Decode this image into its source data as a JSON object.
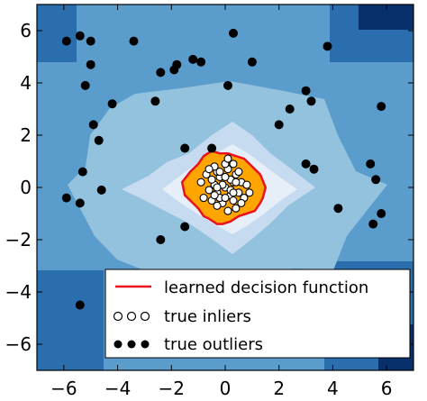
{
  "chart_data": {
    "type": "scatter",
    "xlim": [
      -7,
      7
    ],
    "ylim": [
      -7,
      7
    ],
    "x_ticks": [
      -6,
      -4,
      -2,
      0,
      2,
      4,
      6
    ],
    "y_ticks": [
      -6,
      -4,
      -2,
      0,
      2,
      4,
      6
    ],
    "x_tick_labels": [
      "−6",
      "−4",
      "−2",
      "0",
      "2",
      "4",
      "6"
    ],
    "y_tick_labels": [
      "−6",
      "−4",
      "−2",
      "0",
      "2",
      "4",
      "6"
    ],
    "grid": false,
    "legend": {
      "placement": "lower-right",
      "entries": [
        {
          "label": "learned decision function",
          "marker": "line",
          "color": "#e8131e"
        },
        {
          "label": "true inliers",
          "marker": "open-circle",
          "color": "#ffffff"
        },
        {
          "label": "true outliers",
          "marker": "filled-circle",
          "color": "#000000"
        }
      ]
    },
    "background": {
      "description_levels": [
        "#08306b",
        "#2a6eae",
        "#5a9ccc",
        "#93c2df",
        "#c6dbef",
        "#e6eff8"
      ],
      "inside_region_color": "#ffa500"
    },
    "decision_boundary": {
      "color": "#e8131e",
      "x": [
        -1.6,
        -1.3,
        -1.0,
        -0.8,
        -0.5,
        -0.2,
        0.1,
        0.4,
        0.7,
        0.9,
        1.1,
        1.3,
        1.5,
        1.4,
        1.3,
        1.1,
        0.8,
        0.5,
        0.2,
        -0.1,
        -0.3,
        -0.6,
        -0.8,
        -1.0,
        -1.2,
        -1.5,
        -1.6
      ],
      "y": [
        0.2,
        0.6,
        0.9,
        1.2,
        1.4,
        1.3,
        1.3,
        1.2,
        1.1,
        0.9,
        0.7,
        0.5,
        0.0,
        -0.4,
        -0.6,
        -0.9,
        -1.0,
        -1.1,
        -1.3,
        -1.4,
        -1.4,
        -1.2,
        -1.1,
        -0.8,
        -0.6,
        -0.3,
        0.2
      ]
    },
    "series": [
      {
        "name": "true inliers",
        "color": "#ffffff",
        "x": [
          0.0,
          0.3,
          -0.3,
          0.2,
          -0.2,
          0.4,
          -0.4,
          0.1,
          -0.1,
          0.5,
          -0.5,
          0.3,
          -0.3,
          0.0,
          0.6,
          -0.6,
          0.2,
          -0.2,
          0.4,
          -0.4,
          0.7,
          -0.7,
          0.1,
          -0.1,
          0.3,
          -0.3,
          0.5,
          -0.5,
          0.0,
          0.8,
          -0.8,
          0.2,
          -0.2,
          0.6,
          -0.6,
          0.4,
          -0.4,
          0.0,
          0.3,
          -0.3,
          0.1,
          0.9,
          -0.9
        ],
        "y": [
          0.0,
          0.2,
          -0.2,
          -0.3,
          0.4,
          0.5,
          0.1,
          0.7,
          -0.6,
          -0.2,
          0.3,
          -0.5,
          0.6,
          0.9,
          0.2,
          -0.1,
          0.3,
          -0.4,
          -0.8,
          0.8,
          -0.4,
          0.5,
          -0.9,
          0.1,
          0.9,
          -0.7,
          0.6,
          -0.5,
          -0.4,
          0.1,
          -0.4,
          -0.1,
          0.6,
          -0.6,
          0.7,
          0.2,
          -0.3,
          0.4,
          -0.2,
          0.0,
          1.1,
          -0.2,
          0.2
        ]
      },
      {
        "name": "true outliers",
        "color": "#000000",
        "x": [
          -5.9,
          -5.4,
          -5.0,
          -3.4,
          -1.9,
          -2.4,
          -1.8,
          -1.2,
          -0.9,
          0.3,
          1.0,
          3.8,
          3.0,
          3.2,
          2.4,
          2.0,
          5.8,
          0.1,
          -1.5,
          -2.6,
          -4.2,
          -4.9,
          -5.2,
          -5.0,
          -4.7,
          -5.3,
          -5.9,
          -4.6,
          -5.4,
          -1.5,
          -2.4,
          -0.5,
          3.0,
          3.3,
          4.2,
          5.4,
          5.6,
          5.8,
          5.5,
          -5.4
        ],
        "y": [
          5.6,
          5.8,
          5.6,
          5.6,
          4.5,
          4.4,
          4.7,
          4.9,
          4.8,
          5.9,
          4.8,
          5.4,
          3.7,
          3.3,
          3.0,
          2.4,
          3.1,
          3.9,
          1.5,
          3.3,
          3.2,
          2.4,
          3.9,
          4.7,
          1.8,
          0.6,
          -0.4,
          -0.1,
          -0.6,
          -1.5,
          -2.0,
          1.5,
          0.9,
          0.7,
          -0.8,
          0.9,
          0.3,
          -1.0,
          -1.4,
          -4.5
        ]
      }
    ]
  }
}
